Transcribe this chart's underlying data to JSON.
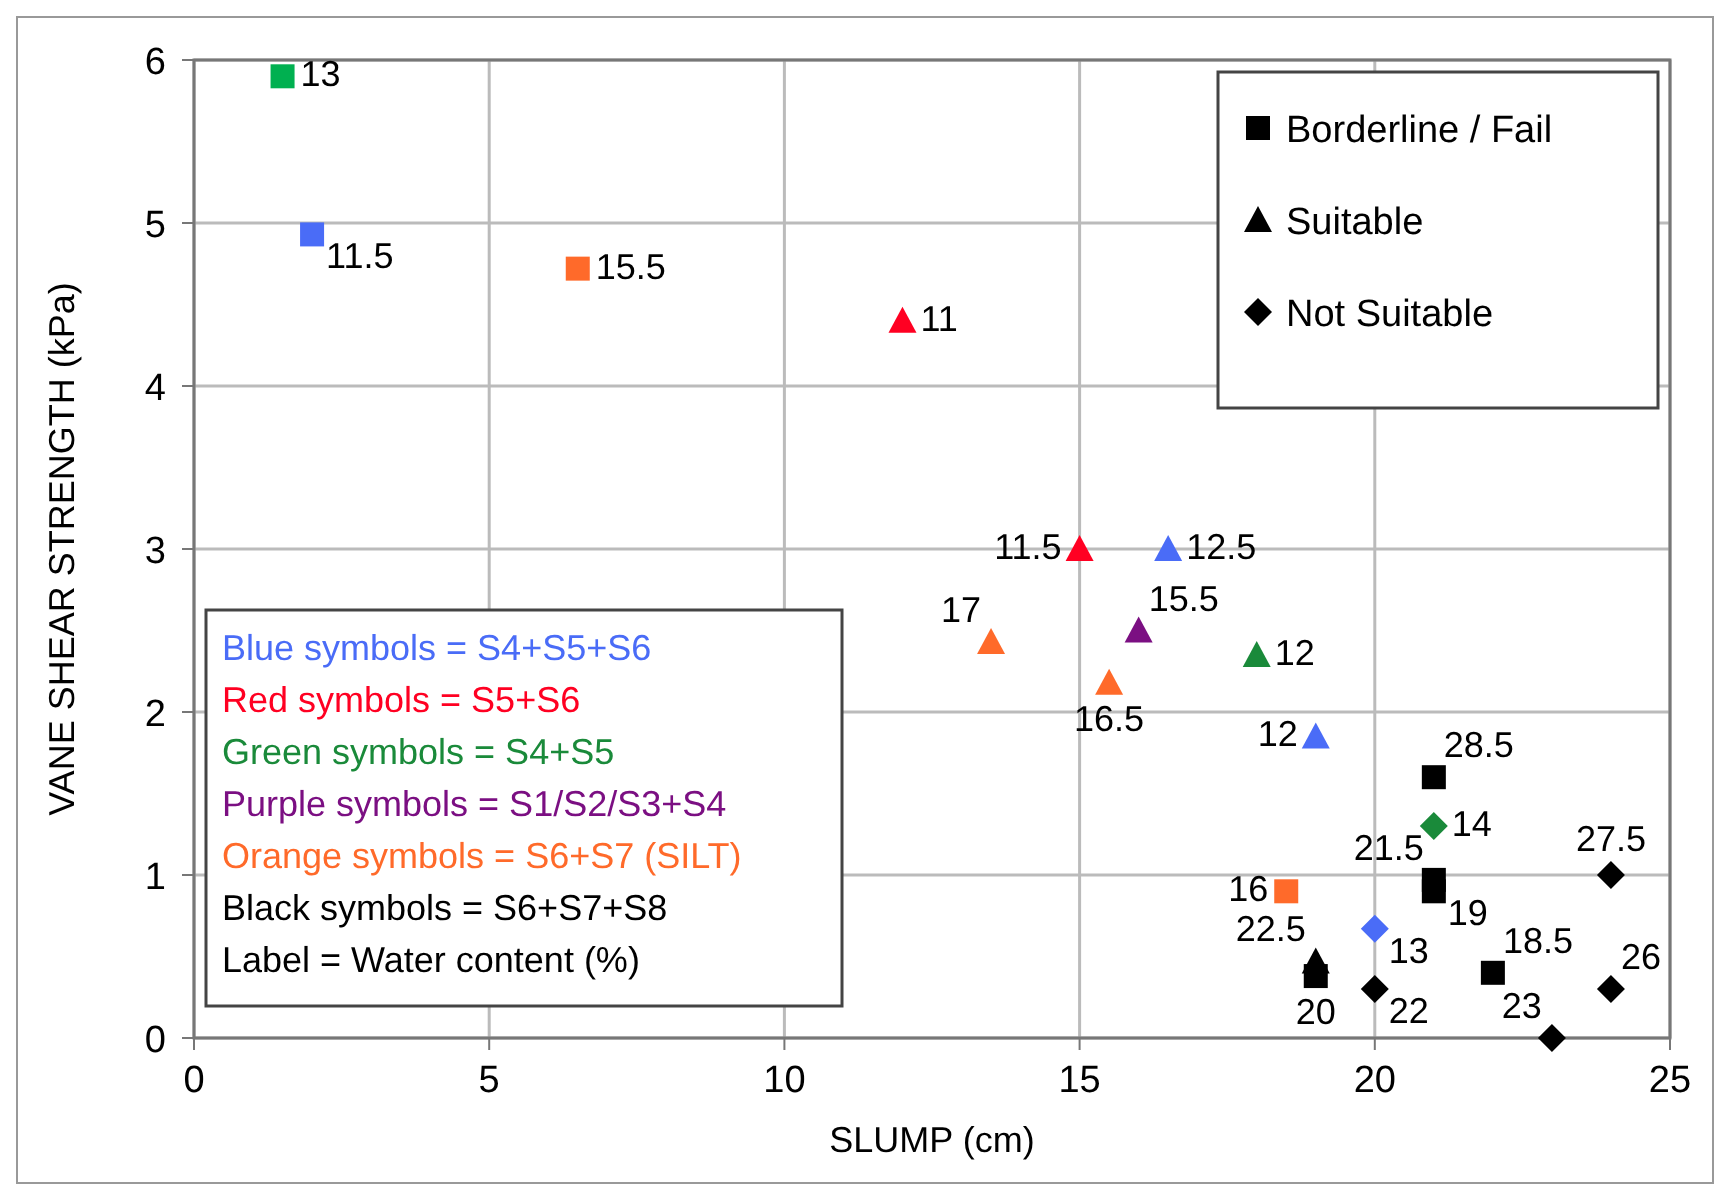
{
  "chart_data": {
    "type": "scatter",
    "xlabel": "SLUMP (cm)",
    "ylabel": "VANE SHEAR STRENGTH (kPa)",
    "xlim": [
      0,
      25
    ],
    "xticks": [
      0,
      5,
      10,
      15,
      20,
      25
    ],
    "ylim": [
      0,
      6
    ],
    "yticks": [
      0,
      1,
      2,
      3,
      4,
      5,
      6
    ],
    "grid": true,
    "legend": "top right",
    "annotations": [
      "Blue symbols = S4+S5+S6",
      "Red symbols = S5+S6",
      "Green symbols = S4+S5",
      "Purple symbols = S1/S2/S3+S4",
      "Orange symbols = S6+S7  (SILT)",
      "Black symbols = S6+S7+S8",
      "Label = Water content (%)",
      {
        "text": "13",
        "x": 1.5,
        "y": 5.9
      },
      {
        "text": "11.5",
        "x": 2,
        "y": 4.93
      },
      {
        "text": "15.5",
        "x": 6.5,
        "y": 4.72
      },
      {
        "text": "28.5",
        "x": 21,
        "y": 1.6
      },
      {
        "text": "21.5",
        "x": 21,
        "y": 0.97
      },
      {
        "text": "19",
        "x": 21,
        "y": 0.9
      },
      {
        "text": "16",
        "x": 18.5,
        "y": 0.9
      },
      {
        "text": "20",
        "x": 19,
        "y": 0.38
      },
      {
        "text": "18.5",
        "x": 22,
        "y": 0.4
      },
      {
        "text": "11",
        "x": 12,
        "y": 4.4
      },
      {
        "text": "11.5",
        "x": 15,
        "y": 3.0
      },
      {
        "text": "12.5",
        "x": 16.5,
        "y": 3.0
      },
      {
        "text": "17",
        "x": 13.5,
        "y": 2.43
      },
      {
        "text": "15.5",
        "x": 16,
        "y": 2.5
      },
      {
        "text": "16.5",
        "x": 15.5,
        "y": 2.18
      },
      {
        "text": "12",
        "x": 18,
        "y": 2.35
      },
      {
        "text": "12",
        "x": 19,
        "y": 1.85
      },
      {
        "text": "22.5",
        "x": 19,
        "y": 0.47
      },
      {
        "text": "14",
        "x": 21,
        "y": 1.3
      },
      {
        "text": "13",
        "x": 20,
        "y": 0.67
      },
      {
        "text": "22",
        "x": 20,
        "y": 0.3
      },
      {
        "text": "27.5",
        "x": 24,
        "y": 1.0
      },
      {
        "text": "26",
        "x": 24,
        "y": 0.3
      },
      {
        "text": "23",
        "x": 23,
        "y": 0.0
      }
    ],
    "series": [
      {
        "name": "Borderline / Fail",
        "marker": "square",
        "color": "#000000",
        "x": [
          1.5,
          2,
          6.5,
          21,
          21,
          21,
          18.5,
          19,
          22
        ],
        "values": [
          5.9,
          4.93,
          4.72,
          1.6,
          0.97,
          0.9,
          0.9,
          0.38,
          0.4
        ],
        "colors": [
          "#00b050",
          "#4a6cf7",
          "#ff6a2a",
          "#000000",
          "#000000",
          "#000000",
          "#ff6a2a",
          "#000000",
          "#000000"
        ]
      },
      {
        "name": "Suitable",
        "marker": "triangle",
        "color": "#000000",
        "x": [
          12,
          15,
          16.5,
          13.5,
          16,
          15.5,
          18,
          19,
          19
        ],
        "values": [
          4.4,
          3.0,
          3.0,
          2.43,
          2.5,
          2.18,
          2.35,
          1.85,
          0.47
        ],
        "colors": [
          "#ff0022",
          "#ff0022",
          "#4a6cf7",
          "#ff6a2a",
          "#7b0f82",
          "#ff6a2a",
          "#1a8a3a",
          "#4a6cf7",
          "#000000"
        ]
      },
      {
        "name": "Not Suitable",
        "marker": "diamond",
        "color": "#000000",
        "x": [
          21,
          20,
          20,
          24,
          24,
          23
        ],
        "values": [
          1.3,
          0.67,
          0.3,
          1.0,
          0.3,
          0.0
        ],
        "colors": [
          "#1a8a3a",
          "#4a6cf7",
          "#000000",
          "#000000",
          "#000000",
          "#000000"
        ]
      }
    ]
  }
}
